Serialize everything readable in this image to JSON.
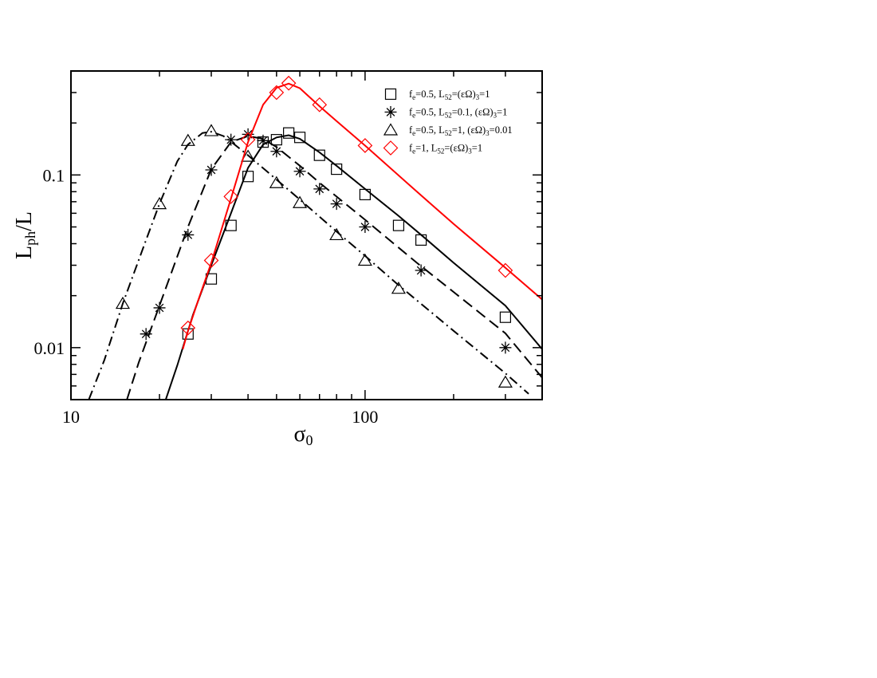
{
  "chart_data": {
    "type": "scatter",
    "xscale": "log",
    "yscale": "log",
    "xlim": [
      10,
      400
    ],
    "ylim": [
      0.005,
      0.4
    ],
    "grid": false,
    "legend_position": "top-right",
    "xlabel": {
      "main": "σ",
      "sub": "0"
    },
    "ylabel": {
      "main": "L",
      "sub": "ph",
      "tail": "/L"
    },
    "x_ticks": [
      {
        "value": 10,
        "label": "10"
      },
      {
        "value": 100,
        "label": "100"
      }
    ],
    "y_ticks": [
      {
        "value": 0.01,
        "label": "0.01"
      },
      {
        "value": 0.1,
        "label": "0.1"
      }
    ],
    "series": [
      {
        "marker": "square",
        "line_style": "solid",
        "color": "#000000",
        "legend_parts": [
          [
            "f",
            ""
          ],
          [
            "e",
            "sub"
          ],
          [
            "=0.5, L",
            ""
          ],
          [
            "52",
            "sub"
          ],
          [
            "=(εΩ)",
            ""
          ],
          [
            "3",
            "sub"
          ],
          [
            "=1",
            ""
          ]
        ],
        "points": [
          [
            25,
            0.012
          ],
          [
            30,
            0.025
          ],
          [
            35,
            0.051
          ],
          [
            40,
            0.098
          ],
          [
            45,
            0.155
          ],
          [
            50,
            0.16
          ],
          [
            55,
            0.175
          ],
          [
            60,
            0.165
          ],
          [
            70,
            0.13
          ],
          [
            80,
            0.108
          ],
          [
            100,
            0.077
          ],
          [
            130,
            0.051
          ],
          [
            155,
            0.042
          ],
          [
            300,
            0.015
          ]
        ],
        "curve": [
          [
            21,
            0.005
          ],
          [
            23,
            0.0079
          ],
          [
            26,
            0.0155
          ],
          [
            30,
            0.03
          ],
          [
            35,
            0.06
          ],
          [
            40,
            0.11
          ],
          [
            45,
            0.15
          ],
          [
            50,
            0.165
          ],
          [
            55,
            0.17
          ],
          [
            60,
            0.162
          ],
          [
            70,
            0.135
          ],
          [
            80,
            0.113
          ],
          [
            100,
            0.083
          ],
          [
            130,
            0.058
          ],
          [
            160,
            0.043
          ],
          [
            200,
            0.031
          ],
          [
            300,
            0.0175
          ],
          [
            400,
            0.0098
          ]
        ]
      },
      {
        "marker": "star",
        "line_style": "dashed",
        "color": "#000000",
        "legend_parts": [
          [
            "f",
            ""
          ],
          [
            "e",
            "sub"
          ],
          [
            "=0.5, L",
            ""
          ],
          [
            "52",
            "sub"
          ],
          [
            "=0.1, (εΩ)",
            ""
          ],
          [
            "3",
            "sub"
          ],
          [
            "=1",
            ""
          ]
        ],
        "points": [
          [
            18,
            0.012
          ],
          [
            20,
            0.017
          ],
          [
            25,
            0.045
          ],
          [
            30,
            0.107
          ],
          [
            35,
            0.16
          ],
          [
            40,
            0.172
          ],
          [
            45,
            0.158
          ],
          [
            50,
            0.137
          ],
          [
            60,
            0.105
          ],
          [
            70,
            0.083
          ],
          [
            80,
            0.068
          ],
          [
            100,
            0.05
          ],
          [
            155,
            0.028
          ],
          [
            300,
            0.01
          ]
        ],
        "curve": [
          [
            15.5,
            0.005
          ],
          [
            17,
            0.0082
          ],
          [
            20,
            0.0175
          ],
          [
            25,
            0.05
          ],
          [
            30,
            0.108
          ],
          [
            35,
            0.155
          ],
          [
            40,
            0.168
          ],
          [
            45,
            0.162
          ],
          [
            50,
            0.145
          ],
          [
            60,
            0.113
          ],
          [
            70,
            0.09
          ],
          [
            80,
            0.075
          ],
          [
            100,
            0.055
          ],
          [
            150,
            0.031
          ],
          [
            200,
            0.021
          ],
          [
            300,
            0.0121
          ],
          [
            400,
            0.0067
          ]
        ]
      },
      {
        "marker": "triangle",
        "line_style": "dash-dot",
        "color": "#000000",
        "legend_parts": [
          [
            "f",
            ""
          ],
          [
            "e",
            "sub"
          ],
          [
            "=0.5, L",
            ""
          ],
          [
            "52",
            "sub"
          ],
          [
            "=1, (εΩ)",
            ""
          ],
          [
            "3",
            "sub"
          ],
          [
            "=0.01",
            ""
          ]
        ],
        "points": [
          [
            15,
            0.018
          ],
          [
            20,
            0.068
          ],
          [
            25,
            0.158
          ],
          [
            30,
            0.18
          ],
          [
            40,
            0.128
          ],
          [
            50,
            0.09
          ],
          [
            60,
            0.069
          ],
          [
            80,
            0.045
          ],
          [
            100,
            0.032
          ],
          [
            130,
            0.022
          ],
          [
            300,
            0.0063
          ]
        ],
        "curve": [
          [
            11.5,
            0.005
          ],
          [
            13,
            0.0085
          ],
          [
            15,
            0.018
          ],
          [
            18,
            0.042
          ],
          [
            20,
            0.068
          ],
          [
            23,
            0.12
          ],
          [
            25,
            0.15
          ],
          [
            28,
            0.175
          ],
          [
            30,
            0.178
          ],
          [
            33,
            0.168
          ],
          [
            36,
            0.15
          ],
          [
            40,
            0.13
          ],
          [
            50,
            0.094
          ],
          [
            60,
            0.072
          ],
          [
            80,
            0.047
          ],
          [
            100,
            0.034
          ],
          [
            130,
            0.023
          ],
          [
            200,
            0.0125
          ],
          [
            300,
            0.0071
          ],
          [
            360,
            0.0054
          ]
        ]
      },
      {
        "marker": "diamond",
        "line_style": "solid",
        "color": "#ff0000",
        "legend_parts": [
          [
            "f",
            ""
          ],
          [
            "e",
            "sub"
          ],
          [
            "=1, L",
            ""
          ],
          [
            "52",
            "sub"
          ],
          [
            "=(εΩ)",
            ""
          ],
          [
            "3",
            "sub"
          ],
          [
            "=1",
            ""
          ]
        ],
        "points": [
          [
            25,
            0.013
          ],
          [
            30,
            0.032
          ],
          [
            35,
            0.075
          ],
          [
            40,
            0.16
          ],
          [
            50,
            0.3
          ],
          [
            55,
            0.34
          ],
          [
            70,
            0.255
          ],
          [
            100,
            0.148
          ],
          [
            300,
            0.028
          ]
        ],
        "curve": [
          [
            24,
            0.0098
          ],
          [
            25,
            0.0125
          ],
          [
            27,
            0.0185
          ],
          [
            30,
            0.031
          ],
          [
            35,
            0.073
          ],
          [
            40,
            0.155
          ],
          [
            45,
            0.255
          ],
          [
            50,
            0.32
          ],
          [
            55,
            0.338
          ],
          [
            60,
            0.318
          ],
          [
            70,
            0.25
          ],
          [
            80,
            0.205
          ],
          [
            100,
            0.148
          ],
          [
            150,
            0.08
          ],
          [
            200,
            0.052
          ],
          [
            300,
            0.029
          ],
          [
            400,
            0.019
          ]
        ]
      }
    ]
  }
}
